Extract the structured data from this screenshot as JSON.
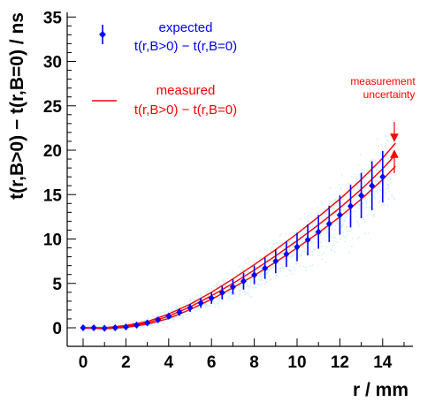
{
  "chart_data": {
    "type": "scatter",
    "xlabel": "r / mm",
    "ylabel": "t(r,B>0) − t(r,B=0) / ns",
    "xlim": [
      -1,
      16
    ],
    "ylim": [
      -1,
      35
    ],
    "x_ticks": [
      0,
      2,
      4,
      6,
      8,
      10,
      12,
      14
    ],
    "y_ticks": [
      0,
      5,
      10,
      15,
      20,
      25,
      30,
      35
    ],
    "grid": false,
    "legend_placement": "top-left",
    "legend": [
      {
        "line1": "expected",
        "line2": "t(r,B>0) − t(r,B=0)",
        "color": "#0000ff",
        "marker": "diamond-errorbar"
      },
      {
        "line1": "measured",
        "line2": "t(r,B>0) − t(r,B=0)",
        "color": "#ff0000",
        "marker": "line"
      }
    ],
    "annotation": {
      "line1": "measurement",
      "line2": "uncertainty",
      "color": "#ff0000"
    },
    "series": [
      {
        "name": "expected",
        "color": "#0000ff",
        "x": [
          0.0,
          0.5,
          1.0,
          1.5,
          2.0,
          2.5,
          3.0,
          3.5,
          4.0,
          4.5,
          5.0,
          5.5,
          6.0,
          6.5,
          7.0,
          7.5,
          8.0,
          8.5,
          9.0,
          9.5,
          10.0,
          10.5,
          11.0,
          11.5,
          12.0,
          12.5,
          13.0,
          13.5,
          14.0
        ],
        "y": [
          0.0,
          0.0,
          -0.05,
          0.0,
          0.1,
          0.3,
          0.55,
          0.9,
          1.3,
          1.75,
          2.25,
          2.8,
          3.35,
          3.95,
          4.6,
          5.25,
          5.95,
          6.7,
          7.5,
          8.3,
          9.1,
          9.9,
          10.8,
          11.7,
          12.7,
          13.7,
          14.9,
          16.0,
          17.0
        ],
        "err": [
          0.05,
          0.05,
          0.05,
          0.05,
          0.1,
          0.15,
          0.2,
          0.25,
          0.3,
          0.4,
          0.45,
          0.55,
          0.65,
          0.75,
          0.85,
          0.95,
          1.05,
          1.2,
          1.35,
          1.45,
          1.6,
          1.75,
          1.9,
          2.05,
          2.2,
          2.4,
          2.55,
          2.75,
          2.9
        ]
      },
      {
        "name": "measured",
        "color": "#ff0000",
        "x": [
          0,
          1,
          2,
          3,
          4,
          5,
          6,
          7,
          8,
          9,
          10,
          11,
          12,
          13,
          14,
          14.6
        ],
        "y": [
          0.0,
          -0.05,
          0.15,
          0.55,
          1.3,
          2.35,
          3.6,
          5.0,
          6.5,
          8.1,
          9.8,
          11.6,
          13.5,
          15.6,
          17.9,
          19.5
        ],
        "band": [
          0.0,
          0.05,
          0.1,
          0.15,
          0.25,
          0.3,
          0.4,
          0.5,
          0.6,
          0.7,
          0.8,
          0.9,
          1.0,
          1.1,
          1.2,
          1.3
        ]
      }
    ]
  }
}
